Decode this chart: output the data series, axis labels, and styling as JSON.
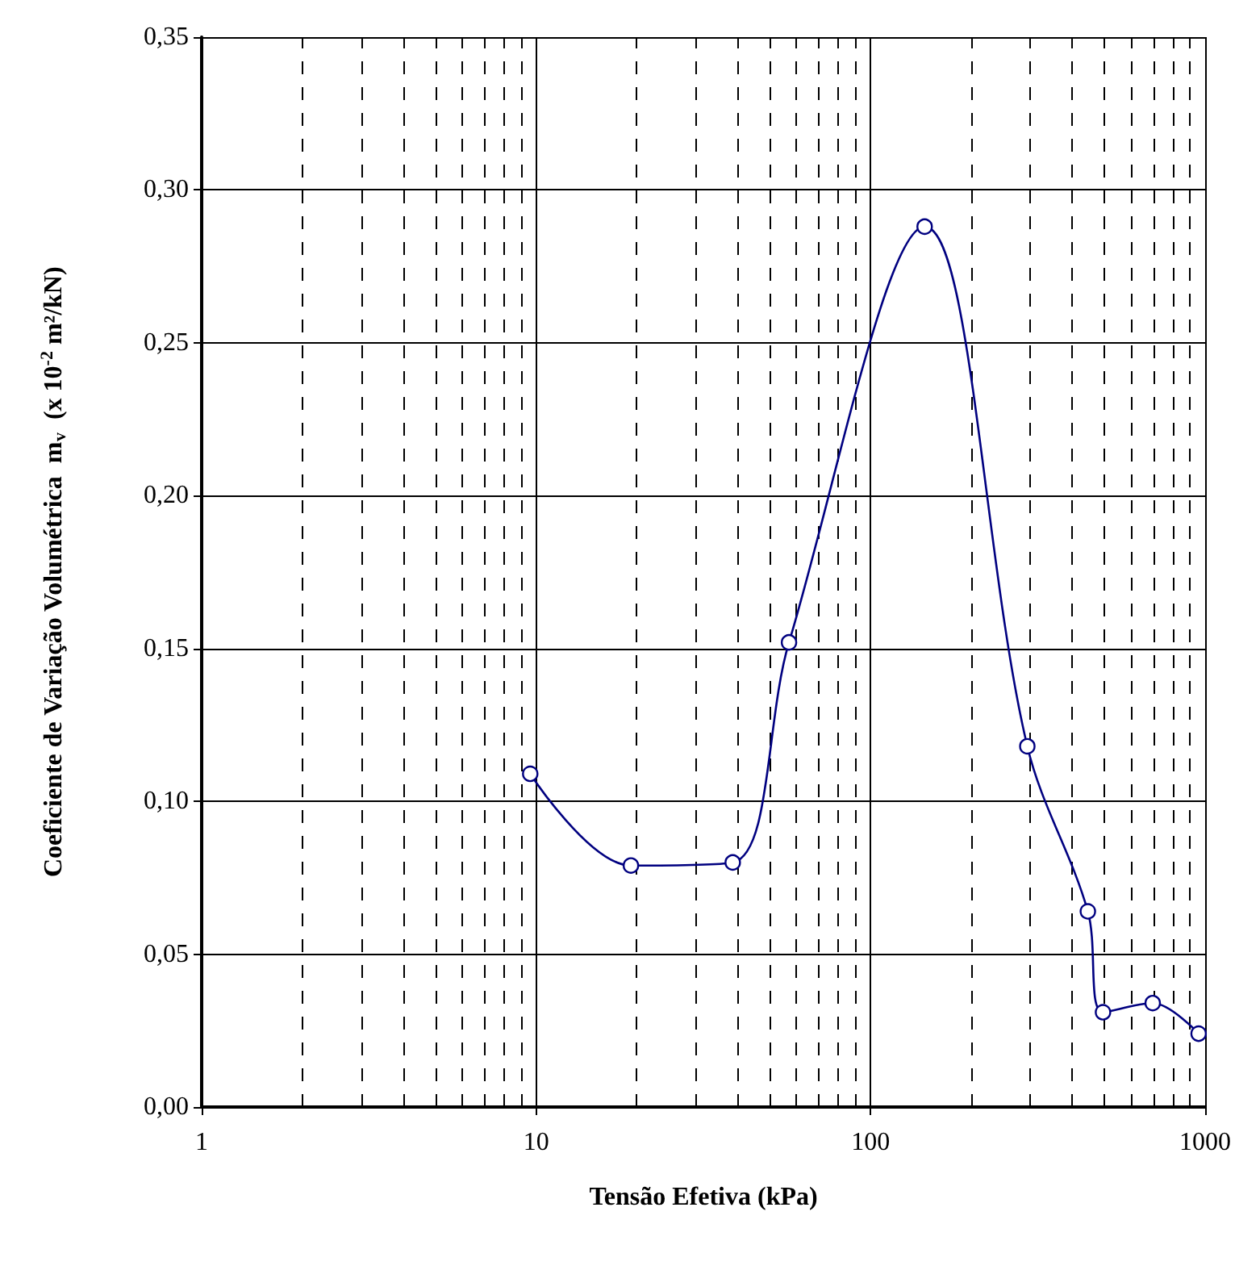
{
  "chart_data": {
    "type": "line",
    "xlabel": "Tensão Efetiva (kPa)",
    "ylabel": "Coeficiente de Variação Volumétrica  m$_{v}$  (x 10$^{-2}$ m²/kN)",
    "x": [
      9.6,
      19.2,
      38.7,
      57,
      145,
      294,
      446,
      495,
      697,
      956
    ],
    "series": [
      {
        "color": "#000080",
        "values": [
          0.109,
          0.079,
          0.08,
          0.152,
          0.288,
          0.118,
          0.064,
          0.031,
          0.034,
          0.024
        ]
      }
    ],
    "log": "x",
    "xlim": [
      1,
      1000
    ],
    "xticks": [
      1,
      10,
      100,
      1000
    ],
    "ylim": [
      0,
      0.35
    ],
    "yticks": [
      {
        "value": 0,
        "label": "0,00"
      },
      {
        "value": 0.05,
        "label": "0,05"
      },
      {
        "value": 0.1,
        "label": "0,10"
      },
      {
        "value": 0.15,
        "label": "0,15"
      },
      {
        "value": 0.2,
        "label": "0,20"
      },
      {
        "value": 0.25,
        "label": "0,25"
      },
      {
        "value": 0.3,
        "label": "0,30"
      },
      {
        "value": 0.35,
        "label": "0,35"
      }
    ],
    "grid": true,
    "marker": "circle",
    "line_style": "solid"
  }
}
